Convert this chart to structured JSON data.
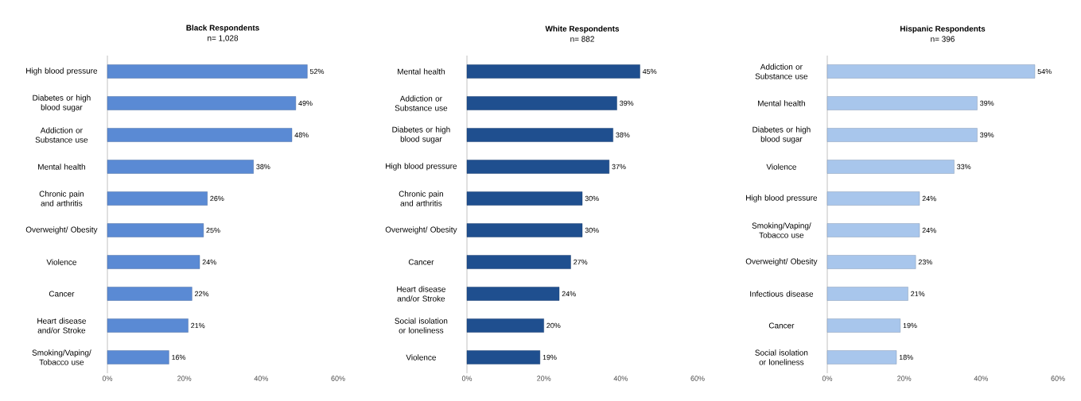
{
  "chart_data": [
    {
      "type": "bar",
      "orientation": "horizontal",
      "title": "Black Respondents",
      "subtitle": "n= 1,028",
      "color": "#5a8ad4",
      "categories": [
        "High blood pressure",
        "Diabetes or high blood sugar",
        "Addiction or Substance use",
        "Mental health",
        "Chronic pain and arthritis",
        "Overweight/ Obesity",
        "Violence",
        "Cancer",
        "Heart disease and/or Stroke",
        "Smoking/Vaping/ Tobacco use"
      ],
      "values": [
        52,
        49,
        48,
        38,
        26,
        25,
        24,
        22,
        21,
        16
      ],
      "value_labels": [
        "52%",
        "49%",
        "48%",
        "38%",
        "26%",
        "25%",
        "24%",
        "22%",
        "21%",
        "16%"
      ],
      "xlim": [
        0,
        60
      ],
      "xticks": [
        {
          "value": 0,
          "label": "0%"
        },
        {
          "value": 20,
          "label": "20%"
        },
        {
          "value": 40,
          "label": "40%"
        },
        {
          "value": 60,
          "label": "60%"
        }
      ]
    },
    {
      "type": "bar",
      "orientation": "horizontal",
      "title": "White Respondents",
      "subtitle": "n= 882",
      "color": "#1f4f8f",
      "categories": [
        "Mental health",
        "Addiction or Substance use",
        "Diabetes or high blood sugar",
        "High blood pressure",
        "Chronic pain and arthritis",
        "Overweight/ Obesity",
        "Cancer",
        "Heart disease and/or Stroke",
        "Social isolation or loneliness",
        "Violence"
      ],
      "values": [
        45,
        39,
        38,
        37,
        30,
        30,
        27,
        24,
        20,
        19
      ],
      "value_labels": [
        "45%",
        "39%",
        "38%",
        "37%",
        "30%",
        "30%",
        "27%",
        "24%",
        "20%",
        "19%"
      ],
      "xlim": [
        0,
        60
      ],
      "xticks": [
        {
          "value": 0,
          "label": "0%"
        },
        {
          "value": 20,
          "label": "20%"
        },
        {
          "value": 40,
          "label": "40%"
        },
        {
          "value": 60,
          "label": "60%"
        }
      ]
    },
    {
      "type": "bar",
      "orientation": "horizontal",
      "title": "Hispanic Respondents",
      "subtitle": "n= 396",
      "color": "#a8c6ec",
      "categories": [
        "Addiction or Substance use",
        "Mental health",
        "Diabetes or high blood sugar",
        "Violence",
        "High blood pressure",
        "Smoking/Vaping/ Tobacco use",
        "Overweight/ Obesity",
        "Infectious disease",
        "Cancer",
        "Social isolation or loneliness"
      ],
      "values": [
        54,
        39,
        39,
        33,
        24,
        24,
        23,
        21,
        19,
        18
      ],
      "value_labels": [
        "54%",
        "39%",
        "39%",
        "33%",
        "24%",
        "24%",
        "23%",
        "21%",
        "19%",
        "18%"
      ],
      "xlim": [
        0,
        60
      ],
      "xticks": [
        {
          "value": 0,
          "label": "0%"
        },
        {
          "value": 20,
          "label": "20%"
        },
        {
          "value": 40,
          "label": "40%"
        },
        {
          "value": 60,
          "label": "60%"
        }
      ]
    }
  ]
}
